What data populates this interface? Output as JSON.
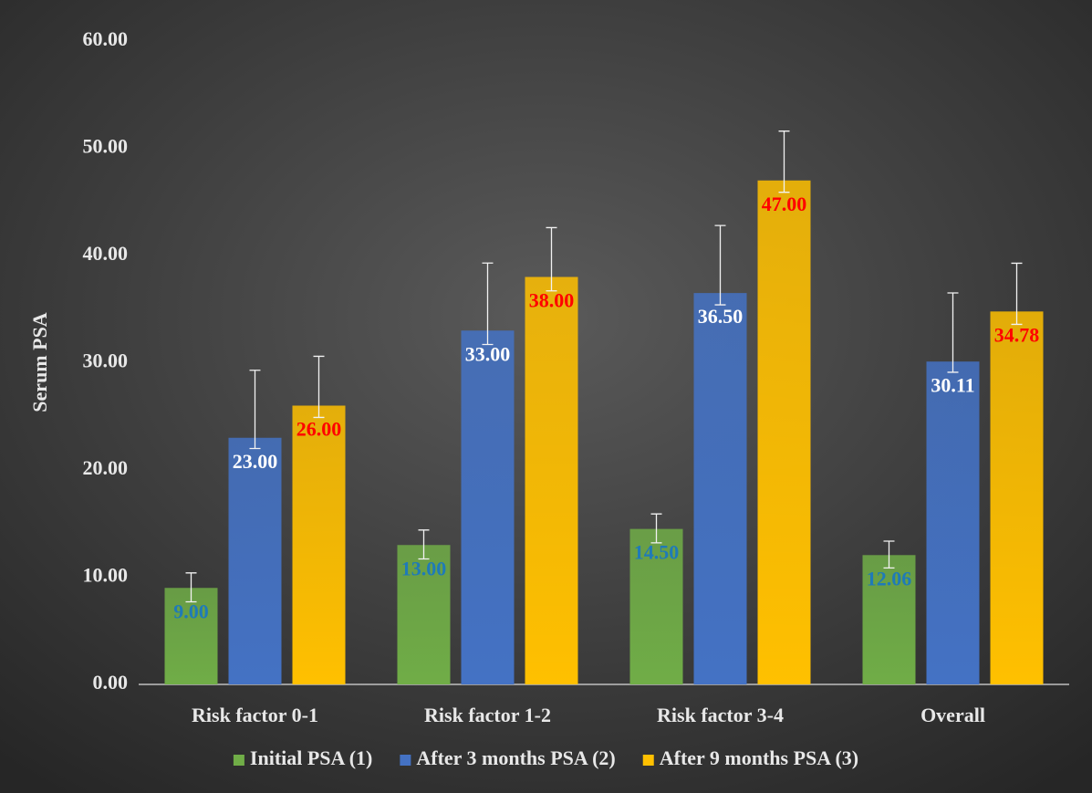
{
  "chart_data": {
    "type": "bar",
    "y_label": "Serum PSA",
    "categories": [
      "Risk factor 0-1",
      "Risk factor 1-2",
      "Risk factor 3-4",
      "Overall"
    ],
    "series": [
      {
        "name": "Initial PSA (1)",
        "color": "#70ad47",
        "label_color": "#1f7ab8",
        "values": [
          9,
          13,
          14.5,
          12.06
        ],
        "value_labels": [
          "9.00",
          "13.00",
          "14.50",
          "12.06"
        ],
        "error_plus": [
          1.4,
          1.4,
          1.4,
          1.3
        ],
        "error_minus": [
          1.3,
          1.3,
          1.3,
          1.2
        ]
      },
      {
        "name": "After 3 months PSA (2)",
        "color": "#4472c4",
        "label_color": "#ffffff",
        "values": [
          23,
          33,
          36.5,
          30.11
        ],
        "value_labels": [
          "23.00",
          "33.00",
          "36.50",
          "30.11"
        ],
        "error_plus": [
          6.3,
          6.3,
          6.3,
          6.4
        ],
        "error_minus": [
          1,
          1.3,
          1.1,
          1
        ]
      },
      {
        "name": "After 9 months PSA (3)",
        "color": "#ffc000",
        "label_color": "#ff0000",
        "values": [
          26,
          38,
          47,
          34.78
        ],
        "value_labels": [
          "26.00",
          "38.00",
          "47.00",
          "34.78"
        ],
        "error_plus": [
          4.6,
          4.6,
          4.6,
          4.5
        ],
        "error_minus": [
          1.1,
          1.3,
          1.1,
          1.2
        ]
      }
    ],
    "ylim": [
      0,
      60
    ],
    "yticks": [
      {
        "value": 0,
        "label": "0.00"
      },
      {
        "value": 10,
        "label": "10.00"
      },
      {
        "value": 20,
        "label": "20.00"
      },
      {
        "value": 30,
        "label": "30.00"
      },
      {
        "value": 40,
        "label": "40.00"
      },
      {
        "value": 50,
        "label": "50.00"
      },
      {
        "value": 60,
        "label": "60.00"
      }
    ],
    "grid": false,
    "legend": "bottom"
  }
}
